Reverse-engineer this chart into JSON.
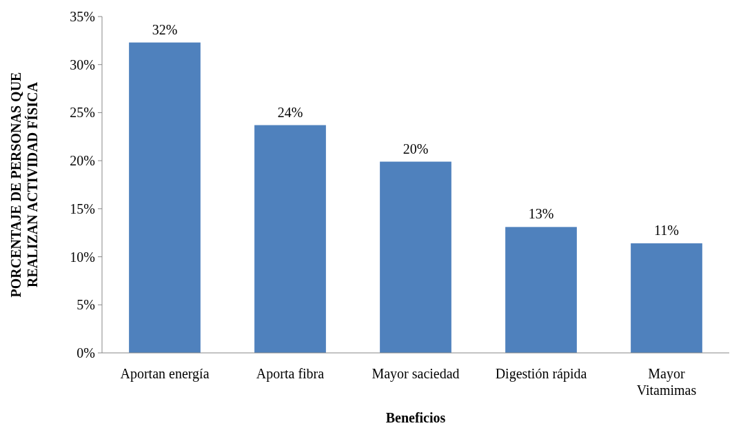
{
  "chart_data": {
    "type": "bar",
    "xlabel": "Beneficios",
    "ylabel": "PORCENTAJE DE PERSONAS QUE REALIZAN ACTIVIDAD FÍSICA",
    "categories": [
      "Aportan energía",
      "Aporta fibra",
      "Mayor saciedad",
      "Digestión rápida",
      "Mayor Vitamimas"
    ],
    "values": [
      32.3,
      23.7,
      19.9,
      13.1,
      11.4
    ],
    "value_labels": [
      "32%",
      "24%",
      "20%",
      "13%",
      "11%"
    ],
    "color": "#4f81bd",
    "ylim": [
      0,
      35
    ],
    "yticks": [
      {
        "value": 0,
        "label": "0%"
      },
      {
        "value": 5,
        "label": "5%"
      },
      {
        "value": 10,
        "label": "10%"
      },
      {
        "value": 15,
        "label": "15%"
      },
      {
        "value": 20,
        "label": "20%"
      },
      {
        "value": 25,
        "label": "25%"
      },
      {
        "value": 30,
        "label": "30%"
      },
      {
        "value": 35,
        "label": "35%"
      }
    ],
    "grid": false
  }
}
